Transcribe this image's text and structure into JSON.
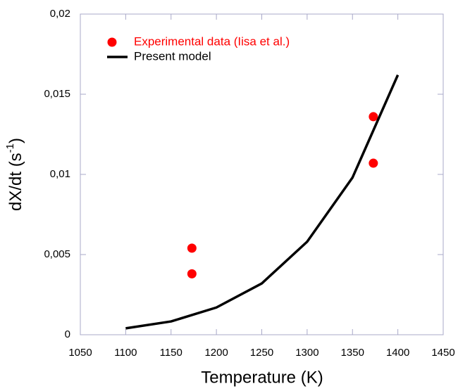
{
  "chart_data": {
    "type": "scatter-line",
    "x_label": "Temperature (K)",
    "y_label": [
      "dX/dt (s",
      "-1",
      ")"
    ],
    "xlim": [
      1050,
      1450
    ],
    "xticks": [
      1050,
      1100,
      1150,
      1200,
      1250,
      1300,
      1350,
      1400,
      1450
    ],
    "ylim": [
      0,
      0.02
    ],
    "yticks": [
      0,
      {
        "value": 0.005,
        "label": "0,005"
      },
      {
        "value": 0.01,
        "label": "0,01"
      },
      {
        "value": 0.015,
        "label": "0,015"
      },
      {
        "value": 0.02,
        "label": "0,02"
      }
    ],
    "legend": "upper left",
    "series": [
      {
        "name": "Experimental data (Iisa et al.)",
        "color": "#ff0000",
        "kind": "scatter",
        "x": [
          1173,
          1173,
          1373,
          1373
        ],
        "values": [
          0.0054,
          0.0038,
          0.0136,
          0.0107
        ]
      },
      {
        "name": "Present model",
        "color": "#000000",
        "kind": "line",
        "x": [
          1100,
          1150,
          1200,
          1250,
          1300,
          1350,
          1400
        ],
        "values": [
          0.0004,
          0.00083,
          0.0017,
          0.0032,
          0.0058,
          0.0098,
          0.0162
        ]
      }
    ]
  }
}
